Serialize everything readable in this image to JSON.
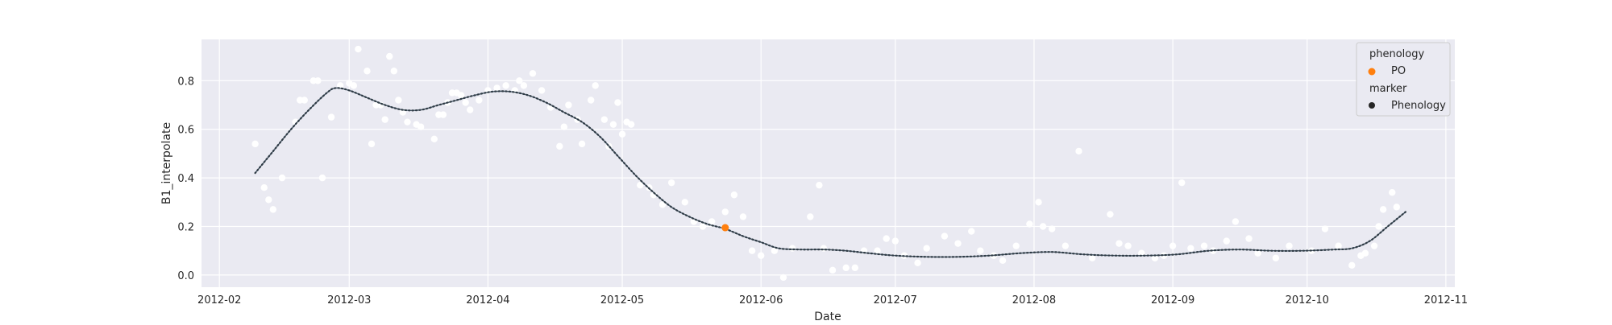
{
  "colors": {
    "background": "#ffffff",
    "plot_area": "#eaeaf2",
    "grid": "#ffffff",
    "scatter": "#ffffff",
    "curve": "#4f6272",
    "phenology_marker": "#ff7f0e",
    "legend_marker": "#262626",
    "legend_box_fill": "#eaeaf2",
    "legend_box_stroke": "#cccccc"
  },
  "chart_data": {
    "type": "line",
    "xlabel": "Date",
    "ylabel": "B1_interpolate",
    "xlim": [
      "2012-01-28",
      "2012-11-03"
    ],
    "ylim": [
      -0.05,
      0.97
    ],
    "x_ticks": [
      "2012-02-01",
      "2012-03-01",
      "2012-04-01",
      "2012-05-01",
      "2012-06-01",
      "2012-07-01",
      "2012-08-01",
      "2012-09-01",
      "2012-10-01",
      "2012-11-01"
    ],
    "x_tick_labels": [
      "2012-02",
      "2012-03",
      "2012-04",
      "2012-05",
      "2012-06",
      "2012-07",
      "2012-08",
      "2012-09",
      "2012-10",
      "2012-11"
    ],
    "y_ticks": [
      0.0,
      0.2,
      0.4,
      0.6,
      0.8
    ],
    "y_tick_labels": [
      "0.0",
      "0.2",
      "0.4",
      "0.6",
      "0.8"
    ],
    "grid": true,
    "legend": {
      "placement": "top-right",
      "sections": [
        {
          "title": "phenology",
          "entries": [
            {
              "label": "PO",
              "marker": "orange-circle"
            }
          ]
        },
        {
          "title": "marker",
          "entries": [
            {
              "label": "Phenology",
              "marker": "dark-circle"
            }
          ]
        }
      ]
    },
    "curve": {
      "x": [
        "2012-02-09",
        "2012-02-13",
        "2012-02-17",
        "2012-02-21",
        "2012-02-25",
        "2012-02-27",
        "2012-03-01",
        "2012-03-05",
        "2012-03-09",
        "2012-03-13",
        "2012-03-17",
        "2012-03-21",
        "2012-03-25",
        "2012-03-29",
        "2012-04-02",
        "2012-04-06",
        "2012-04-10",
        "2012-04-14",
        "2012-04-18",
        "2012-04-22",
        "2012-04-26",
        "2012-04-30",
        "2012-05-04",
        "2012-05-08",
        "2012-05-12",
        "2012-05-16",
        "2012-05-20",
        "2012-05-24",
        "2012-05-28",
        "2012-06-01",
        "2012-06-05",
        "2012-06-10",
        "2012-06-15",
        "2012-06-20",
        "2012-06-25",
        "2012-07-01",
        "2012-07-08",
        "2012-07-15",
        "2012-07-22",
        "2012-07-29",
        "2012-08-05",
        "2012-08-12",
        "2012-08-19",
        "2012-08-26",
        "2012-09-02",
        "2012-09-09",
        "2012-09-16",
        "2012-09-23",
        "2012-09-30",
        "2012-10-07",
        "2012-10-11",
        "2012-10-15",
        "2012-10-19",
        "2012-10-23"
      ],
      "y": [
        0.42,
        0.51,
        0.6,
        0.68,
        0.75,
        0.77,
        0.76,
        0.73,
        0.7,
        0.68,
        0.68,
        0.7,
        0.72,
        0.74,
        0.755,
        0.755,
        0.74,
        0.71,
        0.67,
        0.63,
        0.57,
        0.49,
        0.41,
        0.34,
        0.28,
        0.24,
        0.21,
        0.19,
        0.16,
        0.135,
        0.11,
        0.105,
        0.105,
        0.1,
        0.09,
        0.08,
        0.075,
        0.075,
        0.08,
        0.09,
        0.095,
        0.085,
        0.08,
        0.08,
        0.085,
        0.1,
        0.105,
        0.1,
        0.1,
        0.105,
        0.11,
        0.14,
        0.2,
        0.26
      ]
    },
    "scatter": {
      "x": [
        "2012-02-09",
        "2012-02-11",
        "2012-02-12",
        "2012-02-13",
        "2012-02-15",
        "2012-02-18",
        "2012-02-19",
        "2012-02-20",
        "2012-02-22",
        "2012-02-23",
        "2012-02-24",
        "2012-02-26",
        "2012-02-28",
        "2012-03-01",
        "2012-03-02",
        "2012-03-03",
        "2012-03-05",
        "2012-03-06",
        "2012-03-07",
        "2012-03-08",
        "2012-03-09",
        "2012-03-10",
        "2012-03-11",
        "2012-03-12",
        "2012-03-13",
        "2012-03-14",
        "2012-03-16",
        "2012-03-17",
        "2012-03-20",
        "2012-03-21",
        "2012-03-22",
        "2012-03-23",
        "2012-03-24",
        "2012-03-25",
        "2012-03-26",
        "2012-03-27",
        "2012-03-28",
        "2012-03-30",
        "2012-04-01",
        "2012-04-03",
        "2012-04-05",
        "2012-04-07",
        "2012-04-08",
        "2012-04-09",
        "2012-04-11",
        "2012-04-13",
        "2012-04-15",
        "2012-04-17",
        "2012-04-18",
        "2012-04-19",
        "2012-04-21",
        "2012-04-22",
        "2012-04-24",
        "2012-04-25",
        "2012-04-27",
        "2012-04-28",
        "2012-04-29",
        "2012-04-30",
        "2012-05-01",
        "2012-05-02",
        "2012-05-03",
        "2012-05-05",
        "2012-05-07",
        "2012-05-08",
        "2012-05-10",
        "2012-05-12",
        "2012-05-15",
        "2012-05-17",
        "2012-05-19",
        "2012-05-21",
        "2012-05-24",
        "2012-05-26",
        "2012-05-28",
        "2012-05-30",
        "2012-06-01",
        "2012-06-04",
        "2012-06-08",
        "2012-06-12",
        "2012-06-14",
        "2012-06-15",
        "2012-06-17",
        "2012-06-20",
        "2012-06-22",
        "2012-06-24",
        "2012-06-27",
        "2012-06-29",
        "2012-07-01",
        "2012-07-03",
        "2012-07-06",
        "2012-07-08",
        "2012-07-12",
        "2012-07-15",
        "2012-07-18",
        "2012-07-20",
        "2012-07-23",
        "2012-07-25",
        "2012-07-28",
        "2012-07-31",
        "2012-08-02",
        "2012-08-03",
        "2012-08-05",
        "2012-08-08",
        "2012-08-11",
        "2012-08-14",
        "2012-08-18",
        "2012-08-20",
        "2012-08-22",
        "2012-08-25",
        "2012-08-28",
        "2012-08-30",
        "2012-09-01",
        "2012-09-03",
        "2012-09-05",
        "2012-09-08",
        "2012-09-10",
        "2012-09-13",
        "2012-09-15",
        "2012-09-18",
        "2012-09-20",
        "2012-09-24",
        "2012-09-27",
        "2012-10-02",
        "2012-10-05",
        "2012-10-08",
        "2012-10-11",
        "2012-10-13",
        "2012-10-14",
        "2012-10-16",
        "2012-10-17",
        "2012-10-18",
        "2012-10-20",
        "2012-10-21"
      ],
      "y": [
        0.54,
        0.36,
        0.31,
        0.27,
        0.4,
        0.63,
        0.72,
        0.72,
        0.8,
        0.8,
        0.4,
        0.65,
        0.78,
        0.79,
        0.78,
        0.93,
        0.84,
        0.54,
        0.7,
        0.7,
        0.64,
        0.9,
        0.84,
        0.72,
        0.67,
        0.63,
        0.62,
        0.61,
        0.56,
        0.66,
        0.66,
        0.71,
        0.75,
        0.75,
        0.74,
        0.71,
        0.68,
        0.72,
        0.76,
        0.77,
        0.78,
        0.76,
        0.8,
        0.78,
        0.83,
        0.76,
        0.69,
        0.53,
        0.61,
        0.7,
        0.64,
        0.54,
        0.72,
        0.78,
        0.64,
        0.53,
        0.62,
        0.71,
        0.58,
        0.63,
        0.62,
        0.37,
        0.36,
        0.33,
        0.29,
        0.38,
        0.3,
        0.22,
        0.2,
        0.22,
        0.26,
        0.33,
        0.24,
        0.1,
        0.08,
        0.1,
        0.11,
        0.24,
        0.37,
        0.11,
        0.02,
        0.03,
        0.03,
        0.1,
        0.1,
        0.15,
        0.14,
        0.08,
        0.05,
        0.11,
        0.16,
        0.13,
        0.18,
        0.1,
        0.08,
        0.06,
        0.12,
        0.21,
        0.3,
        0.2,
        0.19,
        0.12,
        0.51,
        0.07,
        0.25,
        0.13,
        0.12,
        0.09,
        0.07,
        0.08,
        0.12,
        0.38,
        0.11,
        0.12,
        0.1,
        0.14,
        0.22,
        0.15,
        0.09,
        0.07,
        0.12,
        0.1,
        0.19,
        0.12,
        0.04,
        0.08,
        0.09,
        0.12,
        0.2,
        0.27,
        0.34,
        0.28
      ],
      "extra_low_point": {
        "x": "2012-06-06",
        "y": -0.01
      }
    },
    "phenology_points": [
      {
        "label": "PO",
        "x": "2012-05-24",
        "y": 0.195
      }
    ]
  }
}
